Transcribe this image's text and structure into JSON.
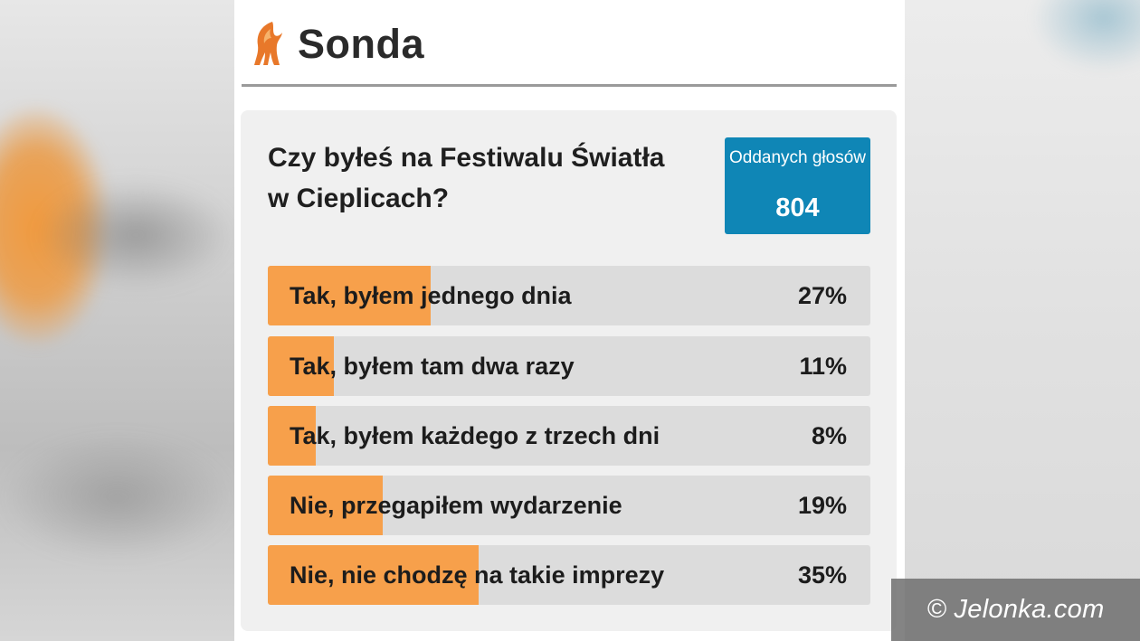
{
  "header": {
    "title": "Sonda",
    "logo_icon": "flame-logo-icon",
    "accent_color": "#e8782a"
  },
  "poll": {
    "question": "Czy byłeś na Festiwalu Światła w Cieplicach?",
    "votes_label": "Oddanych głosów",
    "votes_count": "804",
    "bar_color": "#f7a04b",
    "votes_box_color": "#0f86b6",
    "options": [
      {
        "label": "Tak, byłem jednego dnia",
        "percent_text": "27%",
        "percent": 27
      },
      {
        "label": "Tak, byłem tam dwa razy",
        "percent_text": "11%",
        "percent": 11
      },
      {
        "label": "Tak, byłem każdego z trzech dni",
        "percent_text": "8%",
        "percent": 8
      },
      {
        "label": "Nie, przegapiłem wydarzenie",
        "percent_text": "19%",
        "percent": 19
      },
      {
        "label": "Nie, nie chodzę na takie imprezy",
        "percent_text": "35%",
        "percent": 35
      }
    ]
  },
  "watermark": {
    "text": "© Jelonka.com"
  }
}
